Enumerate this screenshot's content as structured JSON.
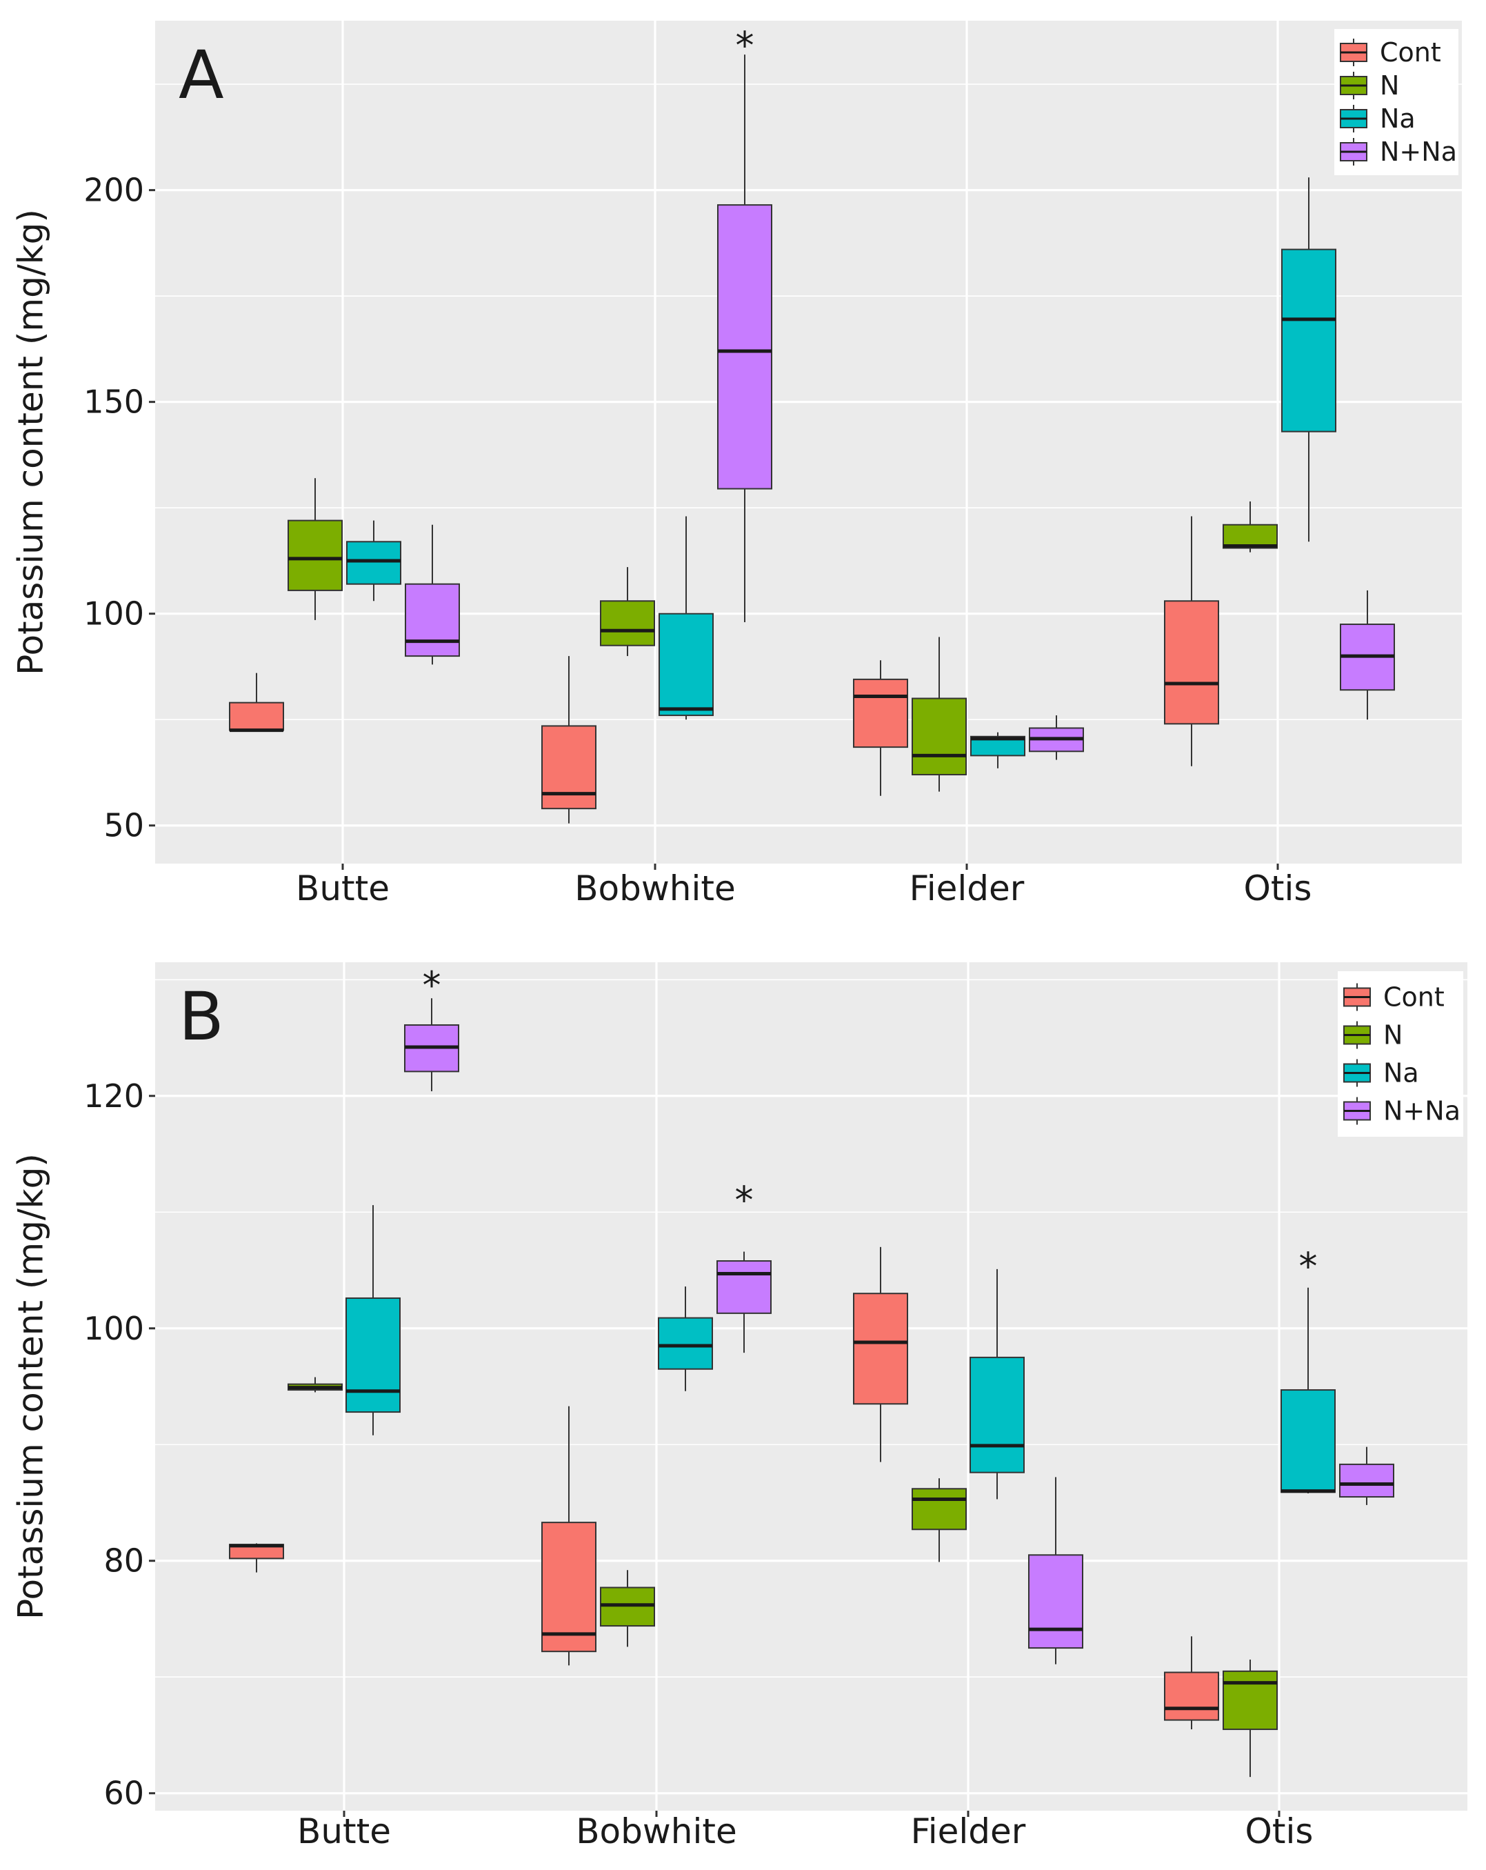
{
  "chart_data": [
    {
      "type": "box",
      "panel_label": "A",
      "ylabel": "Potassium content (mg/kg)",
      "xlabel": "",
      "ylim": [
        41,
        240
      ],
      "yticks": [
        50,
        100,
        150,
        200
      ],
      "categories": [
        "Butte",
        "Bobwhite",
        "Fielder",
        "Otis"
      ],
      "legend": [
        "Cont",
        "N",
        "Na",
        "N+Na"
      ],
      "legend_position": "top-right",
      "colors": {
        "Cont": "#F8766D",
        "N": "#7CAE00",
        "Na": "#00BFC4",
        "N+Na": "#C77CFF"
      },
      "series": [
        {
          "name": "Cont",
          "boxes": [
            {
              "category": "Butte",
              "min": 72.5,
              "q1": 72.5,
              "median": 72.5,
              "q3": 79,
              "max": 86
            },
            {
              "category": "Bobwhite",
              "min": 50.5,
              "q1": 54,
              "median": 57.5,
              "q3": 73.5,
              "max": 90
            },
            {
              "category": "Fielder",
              "min": 57,
              "q1": 68.5,
              "median": 80.5,
              "q3": 84.5,
              "max": 89
            },
            {
              "category": "Otis",
              "min": 64,
              "q1": 74,
              "median": 83.5,
              "q3": 103,
              "max": 123
            }
          ]
        },
        {
          "name": "N",
          "boxes": [
            {
              "category": "Butte",
              "min": 98.5,
              "q1": 105.5,
              "median": 113,
              "q3": 122,
              "max": 132
            },
            {
              "category": "Bobwhite",
              "min": 90,
              "q1": 92.5,
              "median": 96,
              "q3": 103,
              "max": 111
            },
            {
              "category": "Fielder",
              "min": 58,
              "q1": 62,
              "median": 66.5,
              "q3": 80,
              "max": 94.5
            },
            {
              "category": "Otis",
              "min": 114.5,
              "q1": 115.5,
              "median": 116,
              "q3": 121,
              "max": 126.5
            }
          ]
        },
        {
          "name": "Na",
          "boxes": [
            {
              "category": "Butte",
              "min": 103,
              "q1": 107,
              "median": 112.5,
              "q3": 117,
              "max": 122
            },
            {
              "category": "Bobwhite",
              "min": 75,
              "q1": 76,
              "median": 77.5,
              "q3": 100,
              "max": 123
            },
            {
              "category": "Fielder",
              "min": 63.5,
              "q1": 66.5,
              "median": 70.5,
              "q3": 71,
              "max": 72
            },
            {
              "category": "Otis",
              "min": 117,
              "q1": 143,
              "median": 169.5,
              "q3": 186,
              "max": 203
            }
          ]
        },
        {
          "name": "N+Na",
          "boxes": [
            {
              "category": "Butte",
              "min": 88,
              "q1": 90,
              "median": 93.5,
              "q3": 107,
              "max": 121
            },
            {
              "category": "Bobwhite",
              "min": 98,
              "q1": 129.5,
              "median": 162,
              "q3": 196.5,
              "max": 232
            },
            {
              "category": "Fielder",
              "min": 65.5,
              "q1": 67.5,
              "median": 70.5,
              "q3": 73,
              "max": 76
            },
            {
              "category": "Otis",
              "min": 75,
              "q1": 82,
              "median": 90,
              "q3": 97.5,
              "max": 105.5
            }
          ]
        }
      ],
      "annotations": [
        {
          "text": "*",
          "category": "Bobwhite",
          "series": "N+Na",
          "y": 236
        }
      ]
    },
    {
      "type": "box",
      "panel_label": "B",
      "ylabel": "Potassium content (mg/kg)",
      "xlabel": "",
      "ylim": [
        58.5,
        131.5
      ],
      "yticks": [
        60,
        80,
        100,
        120
      ],
      "categories": [
        "Butte",
        "Bobwhite",
        "Fielder",
        "Otis"
      ],
      "legend": [
        "Cont",
        "N",
        "Na",
        "N+Na"
      ],
      "legend_position": "top-right",
      "colors": {
        "Cont": "#F8766D",
        "N": "#7CAE00",
        "Na": "#00BFC4",
        "N+Na": "#C77CFF"
      },
      "series": [
        {
          "name": "Cont",
          "boxes": [
            {
              "category": "Butte",
              "min": 79,
              "q1": 80.2,
              "median": 81.3,
              "q3": 81.4,
              "max": 81.5
            },
            {
              "category": "Bobwhite",
              "min": 71,
              "q1": 72.2,
              "median": 73.7,
              "q3": 83.3,
              "max": 93.3
            },
            {
              "category": "Fielder",
              "min": 88.5,
              "q1": 93.5,
              "median": 98.8,
              "q3": 103,
              "max": 107
            },
            {
              "category": "Otis",
              "min": 65.5,
              "q1": 66.3,
              "median": 67.3,
              "q3": 70.4,
              "max": 73.5
            }
          ]
        },
        {
          "name": "N",
          "boxes": [
            {
              "category": "Butte",
              "min": 94.5,
              "q1": 94.7,
              "median": 94.9,
              "q3": 95.2,
              "max": 95.8
            },
            {
              "category": "Bobwhite",
              "min": 72.6,
              "q1": 74.4,
              "median": 76.2,
              "q3": 77.7,
              "max": 79.2
            },
            {
              "category": "Fielder",
              "min": 79.9,
              "q1": 82.7,
              "median": 85.3,
              "q3": 86.2,
              "max": 87.1
            },
            {
              "category": "Otis",
              "min": 61.4,
              "q1": 65.5,
              "median": 69.5,
              "q3": 70.5,
              "max": 71.5
            }
          ]
        },
        {
          "name": "Na",
          "boxes": [
            {
              "category": "Butte",
              "min": 90.8,
              "q1": 92.8,
              "median": 94.6,
              "q3": 102.6,
              "max": 110.6
            },
            {
              "category": "Bobwhite",
              "min": 94.6,
              "q1": 96.5,
              "median": 98.5,
              "q3": 100.9,
              "max": 103.6
            },
            {
              "category": "Fielder",
              "min": 85.3,
              "q1": 87.6,
              "median": 89.9,
              "q3": 97.5,
              "max": 105.1
            },
            {
              "category": "Otis",
              "min": 85.8,
              "q1": 85.9,
              "median": 86,
              "q3": 94.7,
              "max": 103.5
            }
          ]
        },
        {
          "name": "N+Na",
          "boxes": [
            {
              "category": "Butte",
              "min": 120.4,
              "q1": 122.1,
              "median": 124.2,
              "q3": 126.1,
              "max": 128.4
            },
            {
              "category": "Bobwhite",
              "min": 97.9,
              "q1": 101.3,
              "median": 104.7,
              "q3": 105.8,
              "max": 106.6
            },
            {
              "category": "Fielder",
              "min": 71.1,
              "q1": 72.5,
              "median": 74.1,
              "q3": 80.5,
              "max": 87.2
            },
            {
              "category": "Otis",
              "min": 84.8,
              "q1": 85.5,
              "median": 86.6,
              "q3": 88.3,
              "max": 89.8
            }
          ]
        }
      ],
      "annotations": [
        {
          "text": "*",
          "category": "Butte",
          "series": "N+Na",
          "y": 130.2
        },
        {
          "text": "*",
          "category": "Bobwhite",
          "series": "N+Na",
          "y": 111.7
        },
        {
          "text": "*",
          "category": "Otis",
          "series": "Na",
          "y": 106
        }
      ]
    }
  ]
}
